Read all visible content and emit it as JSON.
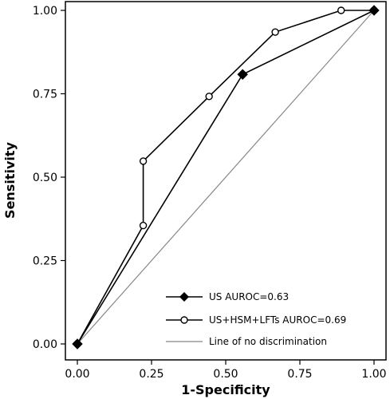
{
  "chart_data": {
    "type": "line",
    "xlabel": "1-Specificity",
    "ylabel": "Sensitivity",
    "xlim": [
      0,
      1
    ],
    "ylim": [
      0,
      1
    ],
    "x_ticks": [
      "0.00",
      "0.25",
      "0.50",
      "0.75",
      "1.00"
    ],
    "y_ticks": [
      "0.00",
      "0.25",
      "0.50",
      "0.75",
      "1.00"
    ],
    "grid": false,
    "legend_position": "bottom-right",
    "series": [
      {
        "name": "US AUROC=0.63",
        "marker": "filled-diamond",
        "color": "#000000",
        "x": [
          0.0,
          0.557,
          1.0
        ],
        "y": [
          0.0,
          0.808,
          1.0
        ]
      },
      {
        "name": "US+HSM+LFTs AUROC=0.69",
        "marker": "open-circle",
        "color": "#000000",
        "x": [
          0.0,
          0.222,
          0.222,
          0.444,
          0.667,
          0.889,
          1.0
        ],
        "y": [
          0.0,
          0.355,
          0.548,
          0.742,
          0.935,
          1.0,
          1.0
        ]
      },
      {
        "name": "Line of no discrimination",
        "marker": "none",
        "color": "#888888",
        "x": [
          0.0,
          1.0
        ],
        "y": [
          0.0,
          1.0
        ]
      }
    ]
  }
}
